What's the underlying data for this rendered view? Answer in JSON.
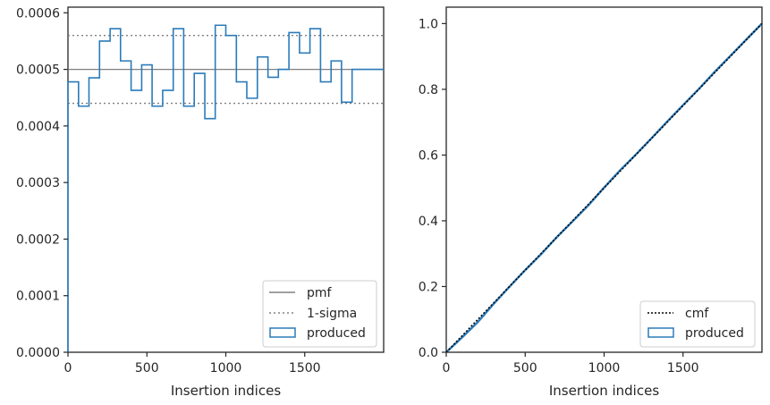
{
  "chart_data": [
    {
      "type": "histogram-step",
      "xlabel": "Insertion indices",
      "ylabel": "",
      "xlim": [
        0,
        2000
      ],
      "ylim": [
        0,
        0.00061
      ],
      "x_ticks": [
        0,
        500,
        1000,
        1500
      ],
      "y_ticks": [
        0.0,
        0.0001,
        0.0002,
        0.0003,
        0.0004,
        0.0005,
        0.0006
      ],
      "y_tick_labels": [
        "0.0000",
        "0.0001",
        "0.0002",
        "0.0003",
        "0.0004",
        "0.0005",
        "0.0006"
      ],
      "pmf": 0.0005,
      "sigma_band": [
        0.00044,
        0.00056
      ],
      "bin_edges": [
        0,
        67,
        133,
        200,
        267,
        333,
        400,
        467,
        533,
        600,
        667,
        733,
        800,
        867,
        933,
        1000,
        1067,
        1133,
        1200,
        1267,
        1333,
        1400,
        1467,
        1533,
        1600,
        1667,
        1733,
        1800,
        1867,
        1933,
        2000
      ],
      "values": [
        0.000478,
        0.000435,
        0.000485,
        0.00055,
        0.000572,
        0.000515,
        0.000463,
        0.000508,
        0.000435,
        0.000463,
        0.000572,
        0.000435,
        0.000493,
        0.000413,
        0.000578,
        0.00056,
        0.000478,
        0.000449,
        0.000522,
        0.000486,
        0.0005,
        0.000565,
        0.000529,
        0.000572,
        0.000478,
        0.000515,
        0.000442,
        0.0005,
        0.0005,
        0.0005
      ],
      "legend": {
        "placement": "lower right",
        "entries": [
          {
            "label": "pmf",
            "style": "solid-gray"
          },
          {
            "label": "1-sigma",
            "style": "dotted-gray"
          },
          {
            "label": "produced",
            "style": "box-blue"
          }
        ]
      },
      "colors": {
        "produced": "#2b7bba",
        "pmf": "#808080",
        "sigma": "#808080"
      }
    },
    {
      "type": "line",
      "xlabel": "Insertion indices",
      "ylabel": "",
      "xlim": [
        0,
        2000
      ],
      "ylim": [
        0,
        1.05
      ],
      "x_ticks": [
        0,
        500,
        1000,
        1500
      ],
      "y_ticks": [
        0.0,
        0.2,
        0.4,
        0.6,
        0.8,
        1.0
      ],
      "y_tick_labels": [
        "0.0",
        "0.2",
        "0.4",
        "0.6",
        "0.8",
        "1.0"
      ],
      "series": [
        {
          "name": "cmf",
          "x": [
            0,
            2000
          ],
          "y": [
            0,
            1.0
          ]
        },
        {
          "name": "produced",
          "x": [
            0,
            100,
            200,
            300,
            400,
            500,
            600,
            700,
            800,
            900,
            1000,
            1100,
            1200,
            1300,
            1400,
            1500,
            1600,
            1700,
            1800,
            1900,
            2000
          ],
          "y": [
            0.0,
            0.045,
            0.092,
            0.147,
            0.199,
            0.25,
            0.298,
            0.35,
            0.398,
            0.447,
            0.501,
            0.553,
            0.601,
            0.651,
            0.702,
            0.752,
            0.801,
            0.853,
            0.902,
            0.951,
            1.0
          ]
        }
      ],
      "legend": {
        "placement": "lower right",
        "entries": [
          {
            "label": "cmf",
            "style": "dotted-black"
          },
          {
            "label": "produced",
            "style": "box-blue"
          }
        ]
      },
      "colors": {
        "produced": "#2b7bba",
        "cmf": "#000000"
      }
    }
  ]
}
